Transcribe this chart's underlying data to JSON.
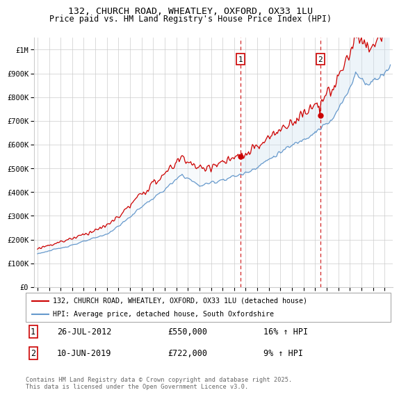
{
  "title1": "132, CHURCH ROAD, WHEATLEY, OXFORD, OX33 1LU",
  "title2": "Price paid vs. HM Land Registry's House Price Index (HPI)",
  "ylabel_ticks": [
    "£0",
    "£100K",
    "£200K",
    "£300K",
    "£400K",
    "£500K",
    "£600K",
    "£700K",
    "£800K",
    "£900K",
    "£1M"
  ],
  "ytick_values": [
    0,
    100000,
    200000,
    300000,
    400000,
    500000,
    600000,
    700000,
    800000,
    900000,
    1000000
  ],
  "xlim": [
    1994.7,
    2025.7
  ],
  "ylim": [
    0,
    1050000
  ],
  "sale1_x": 2012.57,
  "sale1_y": 550000,
  "sale2_x": 2019.44,
  "sale2_y": 722000,
  "red_color": "#cc0000",
  "blue_color": "#6699cc",
  "shaded_color": "#ddeeff",
  "grid_color": "#cccccc",
  "annotation_box_color": "#cc0000",
  "legend1": "132, CHURCH ROAD, WHEATLEY, OXFORD, OX33 1LU (detached house)",
  "legend2": "HPI: Average price, detached house, South Oxfordshire",
  "note1_date": "26-JUL-2012",
  "note1_price": "£550,000",
  "note1_hpi": "16% ↑ HPI",
  "note2_date": "10-JUN-2019",
  "note2_price": "£722,000",
  "note2_hpi": "9% ↑ HPI",
  "footer": "Contains HM Land Registry data © Crown copyright and database right 2025.\nThis data is licensed under the Open Government Licence v3.0."
}
